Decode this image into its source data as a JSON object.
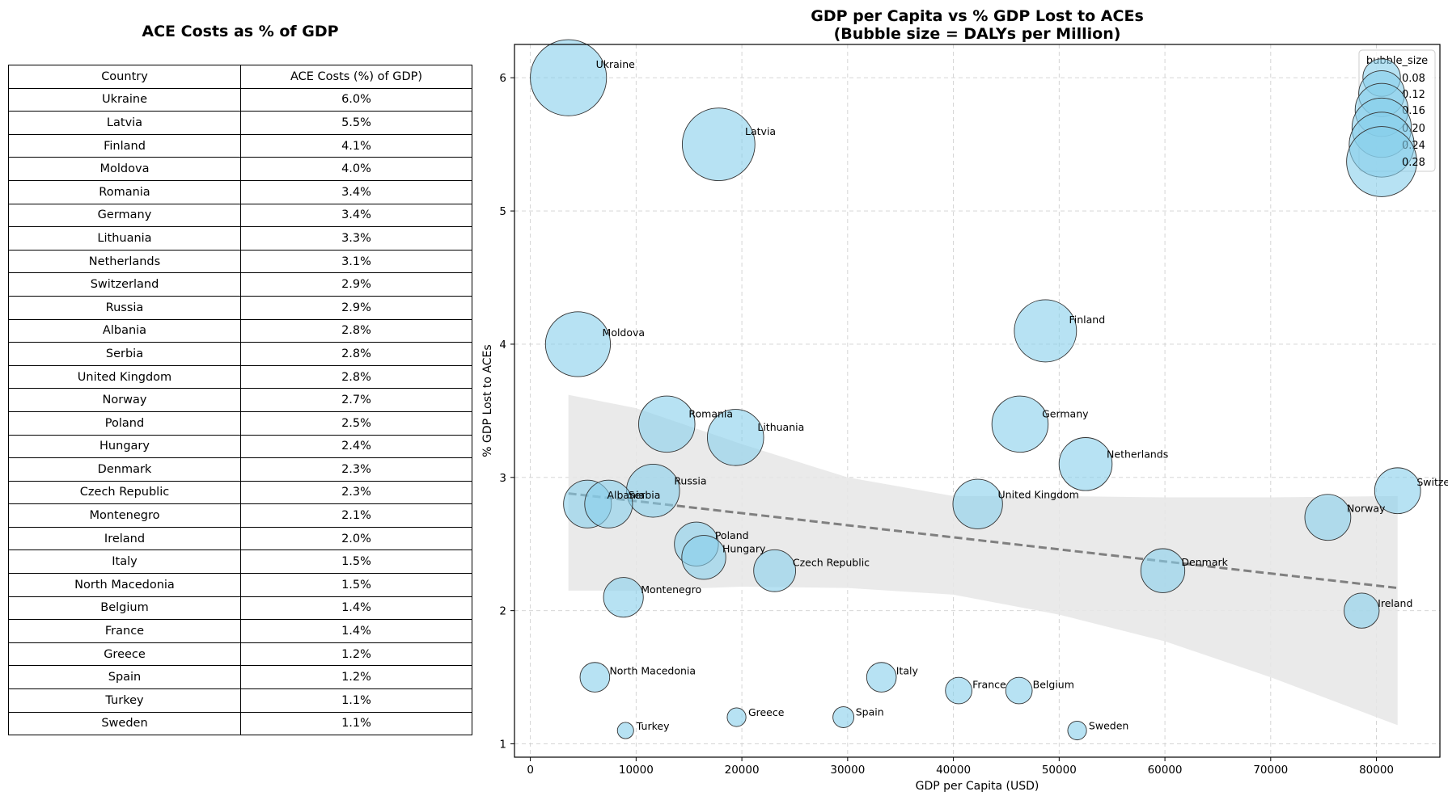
{
  "table": {
    "title": "ACE Costs as % of GDP",
    "headers": [
      "Country",
      "ACE Costs (%) of GDP)"
    ],
    "rows": [
      [
        "Ukraine",
        "6.0%"
      ],
      [
        "Latvia",
        "5.5%"
      ],
      [
        "Finland",
        "4.1%"
      ],
      [
        "Moldova",
        "4.0%"
      ],
      [
        "Romania",
        "3.4%"
      ],
      [
        "Germany",
        "3.4%"
      ],
      [
        "Lithuania",
        "3.3%"
      ],
      [
        "Netherlands",
        "3.1%"
      ],
      [
        "Switzerland",
        "2.9%"
      ],
      [
        "Russia",
        "2.9%"
      ],
      [
        "Albania",
        "2.8%"
      ],
      [
        "Serbia",
        "2.8%"
      ],
      [
        "United Kingdom",
        "2.8%"
      ],
      [
        "Norway",
        "2.7%"
      ],
      [
        "Poland",
        "2.5%"
      ],
      [
        "Hungary",
        "2.4%"
      ],
      [
        "Denmark",
        "2.3%"
      ],
      [
        "Czech Republic",
        "2.3%"
      ],
      [
        "Montenegro",
        "2.1%"
      ],
      [
        "Ireland",
        "2.0%"
      ],
      [
        "Italy",
        "1.5%"
      ],
      [
        "North Macedonia",
        "1.5%"
      ],
      [
        "Belgium",
        "1.4%"
      ],
      [
        "France",
        "1.4%"
      ],
      [
        "Greece",
        "1.2%"
      ],
      [
        "Spain",
        "1.2%"
      ],
      [
        "Turkey",
        "1.1%"
      ],
      [
        "Sweden",
        "1.1%"
      ]
    ]
  },
  "chart_data": {
    "type": "scatter",
    "title": "GDP per Capita vs % GDP Lost to ACEs",
    "subtitle": "(Bubble size = DALYs per Million)",
    "xlabel": "GDP per Capita (USD)",
    "ylabel": "% GDP Lost to ACEs",
    "xlim": [
      -1500,
      86000
    ],
    "ylim": [
      0.9,
      6.25
    ],
    "xticks": [
      0,
      10000,
      20000,
      30000,
      40000,
      50000,
      60000,
      70000,
      80000
    ],
    "yticks": [
      1,
      2,
      3,
      4,
      5,
      6
    ],
    "grid": true,
    "legend": {
      "title": "bubble_size",
      "position": "top-right",
      "entries": [
        {
          "label": "0.08",
          "value": 0.08
        },
        {
          "label": "0.12",
          "value": 0.12
        },
        {
          "label": "0.16",
          "value": 0.16
        },
        {
          "label": "0.20",
          "value": 0.2
        },
        {
          "label": "0.24",
          "value": 0.24
        },
        {
          "label": "0.28",
          "value": 0.28
        }
      ]
    },
    "bubble_color": "#87ceeb",
    "points": [
      {
        "name": "Ukraine",
        "x": 3600,
        "y": 6.0,
        "size": 0.33
      },
      {
        "name": "Latvia",
        "x": 17800,
        "y": 5.5,
        "size": 0.3
      },
      {
        "name": "Finland",
        "x": 48700,
        "y": 4.1,
        "size": 0.22
      },
      {
        "name": "Moldova",
        "x": 4500,
        "y": 4.0,
        "size": 0.24
      },
      {
        "name": "Romania",
        "x": 12900,
        "y": 3.4,
        "size": 0.18
      },
      {
        "name": "Germany",
        "x": 46300,
        "y": 3.4,
        "size": 0.18
      },
      {
        "name": "Lithuania",
        "x": 19400,
        "y": 3.3,
        "size": 0.18
      },
      {
        "name": "Netherlands",
        "x": 52500,
        "y": 3.1,
        "size": 0.16
      },
      {
        "name": "Switzerland",
        "x": 82000,
        "y": 2.9,
        "size": 0.12
      },
      {
        "name": "Russia",
        "x": 11600,
        "y": 2.9,
        "size": 0.16
      },
      {
        "name": "Albania",
        "x": 5400,
        "y": 2.8,
        "size": 0.13
      },
      {
        "name": "Serbia",
        "x": 7400,
        "y": 2.8,
        "size": 0.13
      },
      {
        "name": "United Kingdom",
        "x": 42300,
        "y": 2.8,
        "size": 0.14
      },
      {
        "name": "Norway",
        "x": 75400,
        "y": 2.7,
        "size": 0.12
      },
      {
        "name": "Poland",
        "x": 15700,
        "y": 2.5,
        "size": 0.11
      },
      {
        "name": "Hungary",
        "x": 16400,
        "y": 2.4,
        "size": 0.11
      },
      {
        "name": "Denmark",
        "x": 59800,
        "y": 2.3,
        "size": 0.11
      },
      {
        "name": "Czech Republic",
        "x": 23100,
        "y": 2.3,
        "size": 0.1
      },
      {
        "name": "Montenegro",
        "x": 8800,
        "y": 2.1,
        "size": 0.09
      },
      {
        "name": "Ireland",
        "x": 78600,
        "y": 2.0,
        "size": 0.07
      },
      {
        "name": "Italy",
        "x": 33200,
        "y": 1.5,
        "size": 0.05
      },
      {
        "name": "North Macedonia",
        "x": 6100,
        "y": 1.5,
        "size": 0.05
      },
      {
        "name": "Belgium",
        "x": 46200,
        "y": 1.4,
        "size": 0.04
      },
      {
        "name": "France",
        "x": 40500,
        "y": 1.4,
        "size": 0.04
      },
      {
        "name": "Greece",
        "x": 19500,
        "y": 1.2,
        "size": 0.02
      },
      {
        "name": "Spain",
        "x": 29600,
        "y": 1.2,
        "size": 0.025
      },
      {
        "name": "Turkey",
        "x": 9000,
        "y": 1.1,
        "size": 0.015
      },
      {
        "name": "Sweden",
        "x": 51700,
        "y": 1.1,
        "size": 0.02
      }
    ],
    "trendline": {
      "x": [
        3600,
        82000
      ],
      "y": [
        2.88,
        2.17
      ]
    },
    "confidence_band": {
      "x": [
        3600,
        10000,
        20000,
        30000,
        40000,
        50000,
        60000,
        70000,
        82000
      ],
      "upper": [
        3.62,
        3.52,
        3.25,
        3.0,
        2.86,
        2.86,
        2.85,
        2.85,
        2.86
      ],
      "lower": [
        2.15,
        2.15,
        2.18,
        2.17,
        2.12,
        1.97,
        1.77,
        1.5,
        1.14
      ]
    }
  }
}
